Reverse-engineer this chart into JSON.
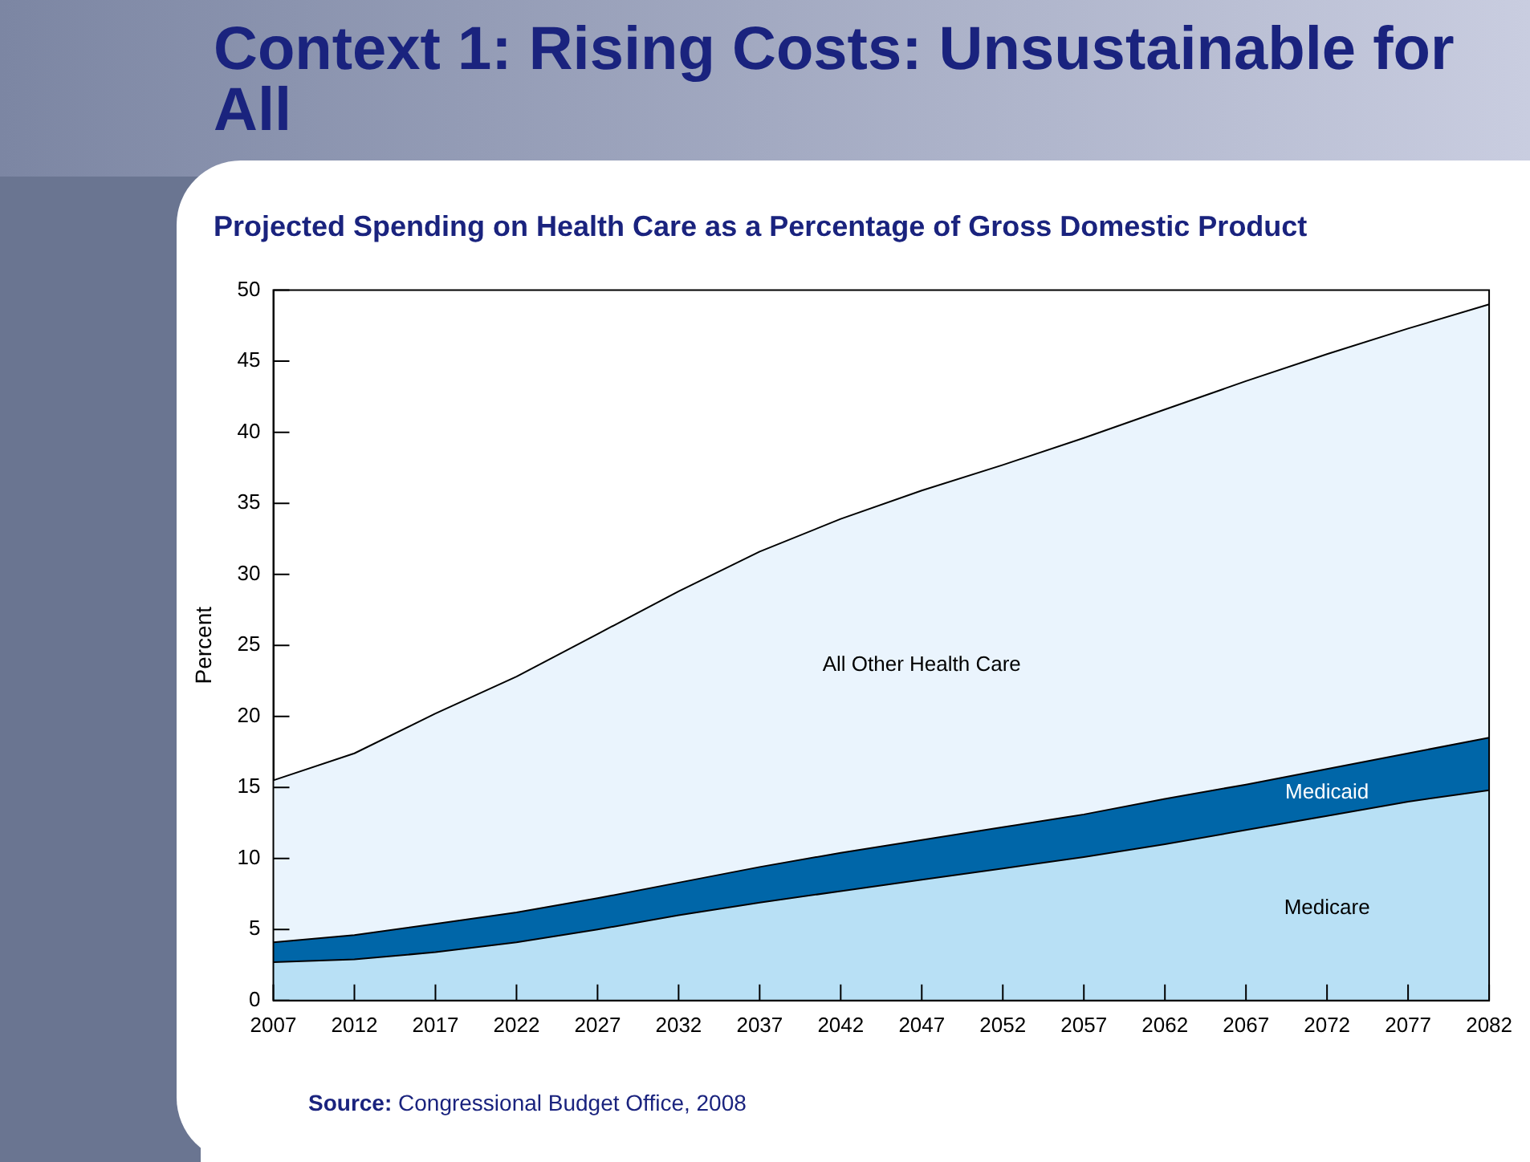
{
  "chart_data": {
    "type": "area",
    "title": "Context 1: Rising Costs: Unsustainable for All",
    "subtitle": "Projected Spending on Health Care as a Percentage of Gross Domestic Product",
    "ylabel": "Percent",
    "stacked": true,
    "grid": false,
    "legend": false,
    "x": [
      2007,
      2012,
      2017,
      2022,
      2027,
      2032,
      2037,
      2042,
      2047,
      2052,
      2057,
      2062,
      2067,
      2072,
      2077,
      2082
    ],
    "xlim": [
      2007,
      2082
    ],
    "xticks": [
      2007,
      2012,
      2017,
      2022,
      2027,
      2032,
      2037,
      2042,
      2047,
      2052,
      2057,
      2062,
      2067,
      2072,
      2077,
      2082
    ],
    "ylim": [
      0,
      50
    ],
    "yticks": [
      0,
      5,
      10,
      15,
      20,
      25,
      30,
      35,
      40,
      45,
      50
    ],
    "series": [
      {
        "name": "Medicare",
        "color": "#b8e0f5",
        "values": [
          2.7,
          2.9,
          3.4,
          4.1,
          5.0,
          6.0,
          6.9,
          7.7,
          8.5,
          9.3,
          10.1,
          11.0,
          12.0,
          13.0,
          14.0,
          14.8
        ]
      },
      {
        "name": "Medicaid",
        "color": "#0066a8",
        "values": [
          1.4,
          1.7,
          2.0,
          2.1,
          2.2,
          2.3,
          2.5,
          2.7,
          2.8,
          2.9,
          3.0,
          3.2,
          3.2,
          3.3,
          3.4,
          3.7
        ]
      },
      {
        "name": "All Other Health Care",
        "color": "#eaf4fd",
        "values": [
          11.4,
          12.8,
          14.8,
          16.6,
          18.6,
          20.5,
          22.2,
          23.5,
          24.6,
          25.5,
          26.5,
          27.4,
          28.4,
          29.2,
          29.9,
          30.5
        ]
      }
    ],
    "annotations": [
      "Source: Congressional Budget Office, 2008"
    ]
  }
}
